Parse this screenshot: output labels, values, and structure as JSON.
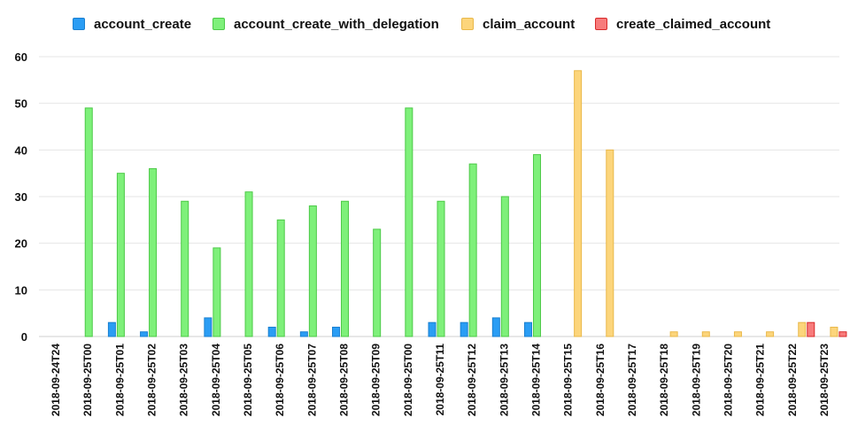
{
  "chart_data": {
    "type": "bar",
    "title": "",
    "xlabel": "",
    "ylabel": "",
    "ylim": [
      0,
      60
    ],
    "yticks": [
      0,
      10,
      20,
      30,
      40,
      50,
      60
    ],
    "grid": true,
    "legend_position": "top",
    "categories": [
      "2018-09-24T24",
      "2018-09-25T00",
      "2018-09-25T01",
      "2018-09-25T02",
      "2018-09-25T03",
      "2018-09-25T04",
      "2018-09-25T05",
      "2018-09-25T06",
      "2018-09-25T07",
      "2018-09-25T08",
      "2018-09-25T09",
      "2018-09-25T00",
      "2018-09-25T11",
      "2018-09-25T12",
      "2018-09-25T13",
      "2018-09-25T14",
      "2018-09-25T15",
      "2018-09-25T16",
      "2018-09-25T17",
      "2018-09-25T18",
      "2018-09-25T19",
      "2018-09-25T20",
      "2018-09-25T21",
      "2018-09-25T22",
      "2018-09-25T23"
    ],
    "series": [
      {
        "name": "account_create",
        "color": "#2a9df4",
        "border": "#1a7fd0",
        "values": [
          0,
          0,
          3,
          1,
          0,
          4,
          0,
          2,
          1,
          2,
          0,
          0,
          3,
          3,
          4,
          3,
          0,
          0,
          0,
          0,
          0,
          0,
          0,
          0,
          0
        ]
      },
      {
        "name": "account_create_with_delegation",
        "color": "#7ef07a",
        "border": "#4cc947",
        "values": [
          0,
          49,
          35,
          36,
          29,
          19,
          31,
          25,
          28,
          29,
          23,
          49,
          29,
          37,
          30,
          39,
          0,
          0,
          0,
          0,
          0,
          0,
          0,
          0,
          0
        ]
      },
      {
        "name": "claim_account",
        "color": "#fcd57b",
        "border": "#e9b84a",
        "values": [
          0,
          0,
          0,
          0,
          0,
          0,
          0,
          0,
          0,
          0,
          0,
          0,
          0,
          0,
          0,
          0,
          57,
          40,
          0,
          1,
          1,
          1,
          1,
          3,
          2
        ]
      },
      {
        "name": "create_claimed_account",
        "color": "#f77b7b",
        "border": "#d82a2a",
        "values": [
          0,
          0,
          0,
          0,
          0,
          0,
          0,
          0,
          0,
          0,
          0,
          0,
          0,
          0,
          0,
          0,
          0,
          0,
          0,
          0,
          0,
          0,
          0,
          3,
          1
        ]
      }
    ]
  }
}
